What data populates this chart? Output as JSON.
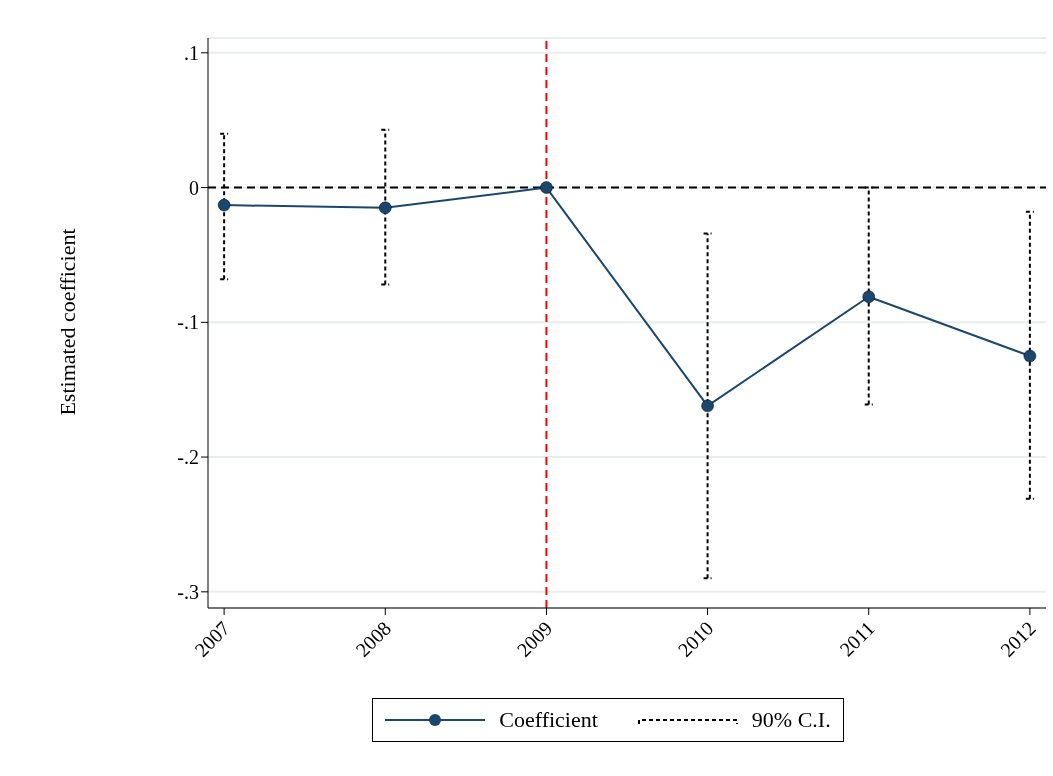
{
  "chart_data": {
    "type": "line",
    "ylabel": "Estimated coefficient",
    "x": [
      2007,
      2008,
      2009,
      2010,
      2011,
      2012
    ],
    "series": [
      {
        "name": "Coefficient",
        "color": "#1a476f",
        "values": [
          -0.013,
          -0.015,
          0,
          -0.162,
          -0.081,
          -0.125
        ],
        "errors": [
          [
            -0.068,
            0.04
          ],
          [
            -0.072,
            0.043
          ],
          null,
          [
            -0.29,
            -0.034
          ],
          [
            -0.161,
            0.0
          ],
          [
            -0.231,
            -0.018
          ]
        ]
      }
    ],
    "annotations": [
      "90% C.I."
    ],
    "xlim": [
      2006.9,
      2012.1
    ],
    "xticks": [
      2007,
      2008,
      2009,
      2010,
      2011,
      2012
    ],
    "ylim": [
      -0.312,
      0.111
    ],
    "yticks": [
      {
        "value": -0.3,
        "label": "-.3"
      },
      {
        "value": -0.2,
        "label": "-.2"
      },
      {
        "value": -0.1,
        "label": "-.1"
      },
      {
        "value": 0,
        "label": "0"
      },
      {
        "value": 0.1,
        "label": ".1"
      }
    ],
    "ref_lines": [
      {
        "axis": "y",
        "value": 0,
        "color": "#000000",
        "line_style": "dashed"
      },
      {
        "axis": "x",
        "value": 2009,
        "color": "#ff0000",
        "line_style": "dashed"
      }
    ],
    "grid": "y",
    "legend": "bottom",
    "marker": "circle",
    "line_style": "solid"
  }
}
